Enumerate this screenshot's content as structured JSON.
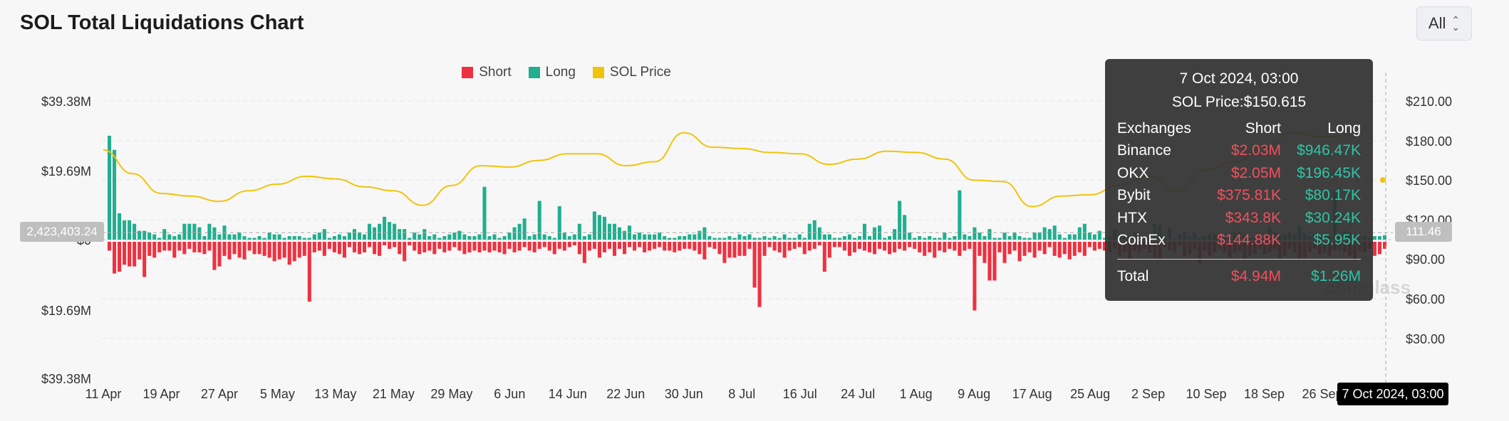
{
  "title": "SOL Total Liquidations Chart",
  "range_select": {
    "value": "All"
  },
  "colors": {
    "short": "#ee3140",
    "long": "#22ae8f",
    "price": "#f0c40c",
    "grid": "#e6e6e6"
  },
  "chart_data": {
    "type": "bar",
    "legend": [
      "Short",
      "Long",
      "SOL Price"
    ],
    "legend_position": "top-center",
    "left_axis": {
      "ticks": [
        "$39.38M",
        "$19.69M",
        "$0",
        "$19.69M",
        "$39.38M"
      ],
      "range_m": [
        -39.38,
        39.38
      ]
    },
    "right_axis": {
      "ticks": [
        "$210.00",
        "$180.00",
        "$150.00",
        "$120.00",
        "$90.00",
        "$60.00",
        "$30.00"
      ],
      "range": [
        0,
        210
      ]
    },
    "x_ticks": [
      "11 Apr",
      "19 Apr",
      "27 Apr",
      "5 May",
      "13 May",
      "21 May",
      "29 May",
      "6 Jun",
      "14 Jun",
      "22 Jun",
      "30 Jun",
      "8 Jul",
      "16 Jul",
      "24 Jul",
      "1 Aug",
      "9 Aug",
      "17 Aug",
      "25 Aug",
      "2 Sep",
      "10 Sep",
      "18 Sep",
      "26 Sep"
    ],
    "long_m": [
      29.5,
      25.5,
      7.5,
      5.5,
      5.5,
      4.5,
      2.5,
      2.5,
      2.0,
      1.5,
      0.5,
      3.0,
      1.5,
      1.0,
      1.5,
      4.5,
      4.5,
      4.5,
      3.5,
      1.0,
      4.5,
      3.5,
      1.5,
      4.0,
      1.5,
      1.5,
      2.0,
      1.0,
      0.5,
      0.5,
      1.0,
      0.5,
      2.0,
      1.5,
      1.5,
      0.5,
      1.0,
      1.0,
      1.0,
      0.5,
      0.5,
      1.5,
      2.0,
      3.0,
      0.5,
      1.0,
      1.5,
      1.0,
      2.0,
      3.0,
      2.0,
      1.5,
      4.5,
      3.5,
      4.5,
      6.5,
      5.0,
      4.5,
      3.0,
      3.0,
      0.5,
      2.0,
      1.5,
      3.0,
      1.0,
      1.5,
      0.5,
      1.0,
      1.5,
      2.0,
      2.5,
      1.5,
      1.0,
      1.0,
      1.5,
      15.0,
      1.0,
      1.5,
      0.5,
      1.0,
      2.0,
      3.5,
      4.5,
      6.0,
      1.0,
      1.5,
      11.0,
      1.5,
      1.0,
      0.5,
      9.5,
      2.0,
      1.0,
      1.5,
      4.5,
      1.0,
      1.5,
      8.0,
      7.0,
      6.5,
      4.5,
      4.5,
      3.5,
      2.5,
      4.0,
      1.5,
      2.0,
      1.5,
      1.5,
      1.5,
      2.0,
      1.0,
      0.5,
      0.5,
      1.0,
      1.0,
      1.5,
      1.5,
      2.5,
      3.5,
      1.0,
      0.5,
      0.5,
      0.5,
      1.0,
      0.5,
      1.5,
      1.0,
      1.5,
      0.5,
      0.5,
      1.0,
      0.5,
      1.0,
      0.5,
      1.5,
      0.5,
      0.5,
      1.5,
      0.5,
      4.5,
      5.5,
      3.5,
      1.5,
      1.5,
      0.5,
      0.5,
      1.0,
      1.5,
      0.5,
      1.0,
      4.5,
      1.0,
      3.5,
      4.0,
      0.5,
      1.0,
      3.0,
      11.0,
      7.0,
      2.0,
      0.5,
      1.0,
      0.5,
      1.0,
      0.5,
      0.5,
      2.0,
      0.5,
      1.0,
      14.0,
      1.5,
      1.0,
      3.5,
      2.0,
      1.0,
      3.0,
      0.5,
      0.5,
      2.0,
      1.0,
      2.0,
      1.0,
      0.5,
      0.5,
      2.0,
      2.0,
      3.5,
      3.0,
      4.0,
      1.5,
      0.5,
      1.5,
      1.5,
      3.5,
      4.5,
      2.0,
      1.5,
      2.5,
      0.5,
      1.0,
      3.0,
      1.5,
      1.0,
      1.0,
      2.0,
      0.5,
      1.0,
      0.5,
      4.5,
      4.0,
      1.0,
      3.5,
      0.5,
      1.5,
      2.0,
      1.0,
      2.0,
      0.5,
      1.0,
      1.5,
      1.5,
      1.0,
      0.5,
      0.5,
      2.0,
      2.5,
      1.5,
      0.5,
      0.5,
      0.5,
      1.0,
      3.5,
      2.0,
      1.5,
      1.5,
      2.0,
      1.5,
      4.0,
      1.5,
      1.0,
      1.5,
      1.0,
      0.5,
      1.0,
      14.0,
      1.5,
      2.5,
      2.0,
      1.0,
      0.5,
      1.0,
      0.5,
      1.0,
      1.0,
      1.26
    ],
    "short_m": [
      2.5,
      9.0,
      8.5,
      6.5,
      7.0,
      7.0,
      5.0,
      10.0,
      4.0,
      4.5,
      3.0,
      2.5,
      2.5,
      4.5,
      2.5,
      3.5,
      2.0,
      3.0,
      3.0,
      3.5,
      2.5,
      8.0,
      7.0,
      4.0,
      5.0,
      3.5,
      4.5,
      5.0,
      2.5,
      3.5,
      3.5,
      4.0,
      4.5,
      5.5,
      5.0,
      4.5,
      6.5,
      5.5,
      4.5,
      4.0,
      17.0,
      3.0,
      2.5,
      4.0,
      2.0,
      3.0,
      3.5,
      4.5,
      1.5,
      3.0,
      3.5,
      3.0,
      1.5,
      3.5,
      4.0,
      1.0,
      2.0,
      1.5,
      3.5,
      5.5,
      1.0,
      2.5,
      3.5,
      3.0,
      2.5,
      3.5,
      2.0,
      3.0,
      2.5,
      1.5,
      2.5,
      3.5,
      3.0,
      2.5,
      3.0,
      2.5,
      3.0,
      2.5,
      3.0,
      3.5,
      2.0,
      3.0,
      2.5,
      1.5,
      2.5,
      3.0,
      2.0,
      1.5,
      2.5,
      3.5,
      2.0,
      2.5,
      1.5,
      1.0,
      3.5,
      6.0,
      2.5,
      2.0,
      4.5,
      3.0,
      2.0,
      4.0,
      2.0,
      3.5,
      1.5,
      2.5,
      1.5,
      3.0,
      2.5,
      2.0,
      1.5,
      2.5,
      2.5,
      3.0,
      2.5,
      2.0,
      2.0,
      2.5,
      3.5,
      5.0,
      1.5,
      2.0,
      3.5,
      6.0,
      4.5,
      4.5,
      4.0,
      4.0,
      2.0,
      13.0,
      18.5,
      4.0,
      1.5,
      2.5,
      3.0,
      4.5,
      2.5,
      2.0,
      1.5,
      3.5,
      2.5,
      2.0,
      1.0,
      8.5,
      4.5,
      1.5,
      1.5,
      2.5,
      4.0,
      3.0,
      2.0,
      2.5,
      3.0,
      3.5,
      2.0,
      2.5,
      3.5,
      3.0,
      2.0,
      2.5,
      1.5,
      2.0,
      3.0,
      4.0,
      3.0,
      4.5,
      2.5,
      3.0,
      2.0,
      2.5,
      4.0,
      2.5,
      2.0,
      19.5,
      4.0,
      6.0,
      11.0,
      11.0,
      3.0,
      6.0,
      3.5,
      2.5,
      5.5,
      4.0,
      3.0,
      4.5,
      2.5,
      3.5,
      1.5,
      4.0,
      4.5,
      3.5,
      5.0,
      4.0,
      3.0,
      4.0,
      1.5,
      2.5,
      2.0,
      2.5,
      3.0,
      2.0,
      4.0,
      3.0,
      5.0,
      2.5,
      3.0,
      2.0,
      3.0,
      4.5,
      5.0,
      1.5,
      2.5,
      3.0,
      1.0,
      4.0,
      3.5,
      2.0,
      6.0,
      2.5,
      4.0,
      3.0,
      2.0,
      3.0,
      4.5,
      3.0,
      2.5,
      5.0,
      4.0,
      3.5,
      2.0,
      3.5,
      3.0,
      2.0,
      5.0,
      4.0,
      2.0,
      3.0,
      5.0,
      4.5,
      3.0,
      2.0,
      3.5,
      3.0,
      4.0,
      2.5,
      2.5,
      3.0,
      4.0,
      5.5,
      2.5,
      3.0,
      2.0,
      4.0,
      3.5,
      2.0,
      2.0,
      4.94
    ],
    "price_x": [
      0,
      0.5,
      1,
      1.5,
      2,
      2.5,
      3,
      3.5,
      4,
      4.5,
      5,
      5.5,
      6,
      6.5,
      7,
      7.5,
      8,
      8.5,
      9,
      9.5,
      10,
      10.5,
      11,
      11.5,
      12,
      12.5,
      13,
      13.5,
      14,
      14.5,
      15,
      15.5,
      16,
      16.5,
      17,
      17.5,
      18,
      18.5,
      19,
      19.5,
      20,
      20.5,
      21,
      21.5
    ],
    "price": [
      173,
      155,
      140,
      138,
      134,
      142,
      147,
      153,
      151,
      145,
      142,
      131,
      146,
      161,
      160,
      165,
      170,
      170,
      161,
      164,
      186,
      175,
      174,
      171,
      170,
      162,
      166,
      172,
      171,
      166,
      150,
      149,
      130,
      138,
      139,
      146,
      153,
      142,
      158,
      164,
      175,
      186,
      183,
      184
    ],
    "highlight_index": 255,
    "crosshair": {
      "date": "7 Oct 2024, 03:00",
      "left_value": "2,423,403.24",
      "right_value": "111.46"
    },
    "tooltip": {
      "date": "7 Oct 2024, 03:00",
      "price": "SOL Price:$150.615",
      "headers": [
        "Exchanges",
        "Short",
        "Long"
      ],
      "rows": [
        {
          "exchange": "Binance",
          "short": "$2.03M",
          "long": "$946.47K"
        },
        {
          "exchange": "OKX",
          "short": "$2.05M",
          "long": "$196.45K"
        },
        {
          "exchange": "Bybit",
          "short": "$375.81K",
          "long": "$80.17K"
        },
        {
          "exchange": "HTX",
          "short": "$343.8K",
          "long": "$30.24K"
        },
        {
          "exchange": "CoinEx",
          "short": "$144.88K",
          "long": "$5.95K"
        }
      ],
      "total": {
        "label": "Total",
        "short": "$4.94M",
        "long": "$1.26M"
      }
    },
    "watermark": "coinglass"
  }
}
